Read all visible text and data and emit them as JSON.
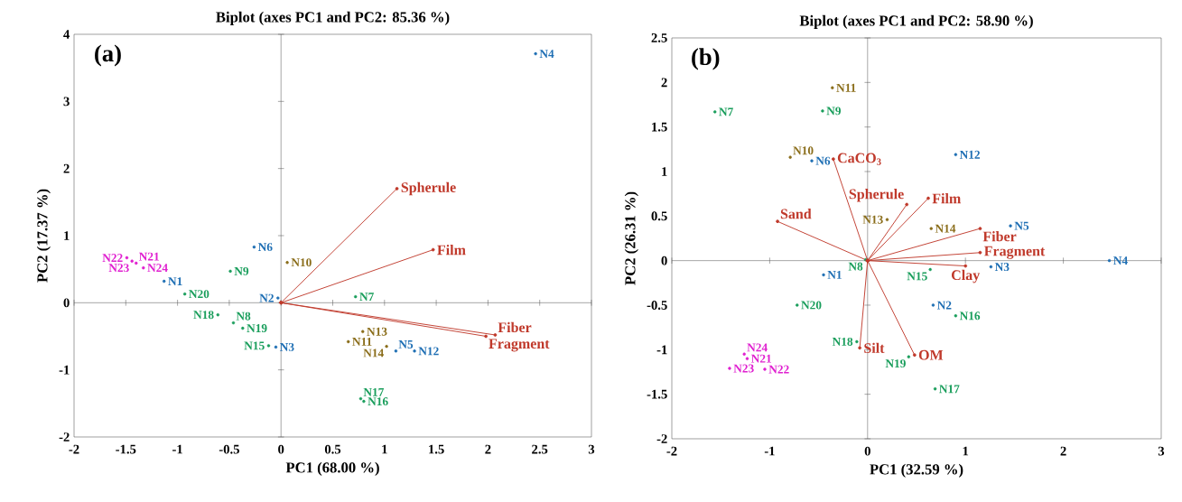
{
  "chart_data": [
    {
      "type": "scatter",
      "title": "Biplot (axes PC1 and PC2: 85.36 %)",
      "xlabel": "PC1 (68.00 %)",
      "ylabel": "PC2 (17.37 %)",
      "annotations": [
        "(a)"
      ],
      "marker": "circle",
      "xlim": [
        -2,
        3
      ],
      "ylim": [
        -2,
        4
      ],
      "xticks": [
        -2,
        -1.5,
        -1,
        -0.5,
        0,
        0.5,
        1,
        1.5,
        2,
        2.5,
        3
      ],
      "yticks": [
        -2,
        -1,
        0,
        1,
        2,
        3,
        4
      ],
      "series": [
        {
          "color": "#1f6fb4",
          "x": [
            -1.13,
            -0.03,
            -0.05,
            2.46,
            1.11,
            -0.26,
            1.29
          ],
          "values": [
            0.32,
            0.07,
            -0.66,
            3.71,
            -0.72,
            0.83,
            -0.72
          ],
          "value_labels": [
            "N1",
            "N2",
            "N3",
            "N4",
            "N5",
            "N6",
            "N12"
          ]
        },
        {
          "color": "#1a9e5c",
          "x": [
            0.72,
            -0.46,
            -0.49,
            -0.12,
            0.8,
            0.77,
            -0.61,
            -0.37,
            -0.93
          ],
          "values": [
            0.09,
            -0.3,
            0.47,
            -0.64,
            -1.47,
            -1.43,
            -0.18,
            -0.38,
            0.13
          ],
          "value_labels": [
            "N7",
            "N8",
            "N9",
            "N15",
            "N16",
            "N17",
            "N18",
            "N19",
            "N20"
          ]
        },
        {
          "color": "#8a6d1a",
          "x": [
            0.06,
            0.65,
            0.79,
            1.02
          ],
          "values": [
            0.6,
            -0.58,
            -0.43,
            -0.65
          ],
          "value_labels": [
            "N10",
            "N11",
            "N13",
            "N14"
          ]
        },
        {
          "color": "#e020d0",
          "x": [
            -1.4,
            -1.49,
            -1.44,
            -1.33
          ],
          "values": [
            0.59,
            0.67,
            0.62,
            0.52
          ],
          "value_labels": [
            "N21",
            "N22",
            "N23",
            "N24"
          ]
        },
        {
          "type": "line",
          "name": "Spherule",
          "color": "#c0392b",
          "x": [
            0,
            1.12
          ],
          "values": [
            0,
            1.7
          ]
        },
        {
          "type": "line",
          "name": "Film",
          "color": "#c0392b",
          "x": [
            0,
            1.47
          ],
          "values": [
            0,
            0.79
          ]
        },
        {
          "type": "line",
          "name": "Fiber",
          "color": "#c0392b",
          "x": [
            0,
            2.07
          ],
          "values": [
            0,
            -0.48
          ]
        },
        {
          "type": "line",
          "name": "Fragment",
          "color": "#c0392b",
          "x": [
            0,
            1.98
          ],
          "values": [
            0,
            -0.5
          ]
        }
      ]
    },
    {
      "type": "scatter",
      "title": "Biplot (axes PC1 and PC2: 58.90 %)",
      "xlabel": "PC1 (32.59 %)",
      "ylabel": "PC2 (26.31 %)",
      "annotations": [
        "(b)"
      ],
      "marker": "circle",
      "xlim": [
        -2,
        3
      ],
      "ylim": [
        -2,
        2.5
      ],
      "xticks": [
        -2,
        -1,
        0,
        1,
        2,
        3
      ],
      "yticks": [
        -2,
        -1.5,
        -1,
        -0.5,
        0,
        0.5,
        1,
        1.5,
        2,
        2.5
      ],
      "series": [
        {
          "color": "#1f6fb4",
          "x": [
            -0.45,
            0.67,
            1.26,
            2.47,
            1.46,
            -0.57,
            0.9
          ],
          "values": [
            -0.16,
            -0.5,
            -0.07,
            0.0,
            0.39,
            1.12,
            1.19
          ],
          "value_labels": [
            "N1",
            "N2",
            "N3",
            "N4",
            "N5",
            "N6",
            "N12"
          ]
        },
        {
          "color": "#1a9e5c",
          "x": [
            -1.56,
            -0.02,
            -0.46,
            0.64,
            0.9,
            0.69,
            -0.11,
            0.42,
            -0.72
          ],
          "values": [
            1.67,
            0.01,
            1.68,
            -0.1,
            -0.62,
            -1.44,
            -0.91,
            -1.08,
            -0.5
          ],
          "value_labels": [
            "N7",
            "N8",
            "N9",
            "N15",
            "N16",
            "N17",
            "N18",
            "N19",
            "N20"
          ]
        },
        {
          "color": "#8a6d1a",
          "x": [
            -0.79,
            -0.36,
            0.2,
            0.65
          ],
          "values": [
            1.16,
            1.94,
            0.46,
            0.36
          ],
          "value_labels": [
            "N10",
            "N11",
            "N13",
            "N14"
          ]
        },
        {
          "color": "#e020d0",
          "x": [
            -1.23,
            -1.05,
            -1.41,
            -1.26
          ],
          "values": [
            -1.1,
            -1.22,
            -1.21,
            -1.05
          ],
          "value_labels": [
            "N21",
            "N22",
            "N23",
            "N24"
          ]
        },
        {
          "type": "line",
          "name": "CaCO$_{3}$",
          "color": "#c0392b",
          "x": [
            0,
            -0.35
          ],
          "values": [
            0,
            1.14
          ]
        },
        {
          "type": "line",
          "name": "Sand",
          "color": "#c0392b",
          "x": [
            0,
            -0.92
          ],
          "values": [
            0,
            0.44
          ]
        },
        {
          "type": "line",
          "name": "Spherule",
          "color": "#c0392b",
          "x": [
            0,
            0.4
          ],
          "values": [
            0,
            0.63
          ]
        },
        {
          "type": "line",
          "name": "Film",
          "color": "#c0392b",
          "x": [
            0,
            0.62
          ],
          "values": [
            0,
            0.7
          ]
        },
        {
          "type": "line",
          "name": "Fiber",
          "color": "#c0392b",
          "x": [
            0,
            1.15
          ],
          "values": [
            0,
            0.36
          ]
        },
        {
          "type": "line",
          "name": "Fragment",
          "color": "#c0392b",
          "x": [
            0,
            1.15
          ],
          "values": [
            0,
            0.09
          ]
        },
        {
          "type": "line",
          "name": "Clay",
          "color": "#c0392b",
          "x": [
            0,
            1.0
          ],
          "values": [
            0,
            -0.06
          ]
        },
        {
          "type": "line",
          "name": "OM",
          "color": "#c0392b",
          "x": [
            0,
            0.48
          ],
          "values": [
            0,
            -1.06
          ]
        },
        {
          "type": "line",
          "name": "Silt",
          "color": "#c0392b",
          "x": [
            0,
            -0.08
          ],
          "values": [
            0,
            -0.98
          ]
        }
      ]
    }
  ]
}
